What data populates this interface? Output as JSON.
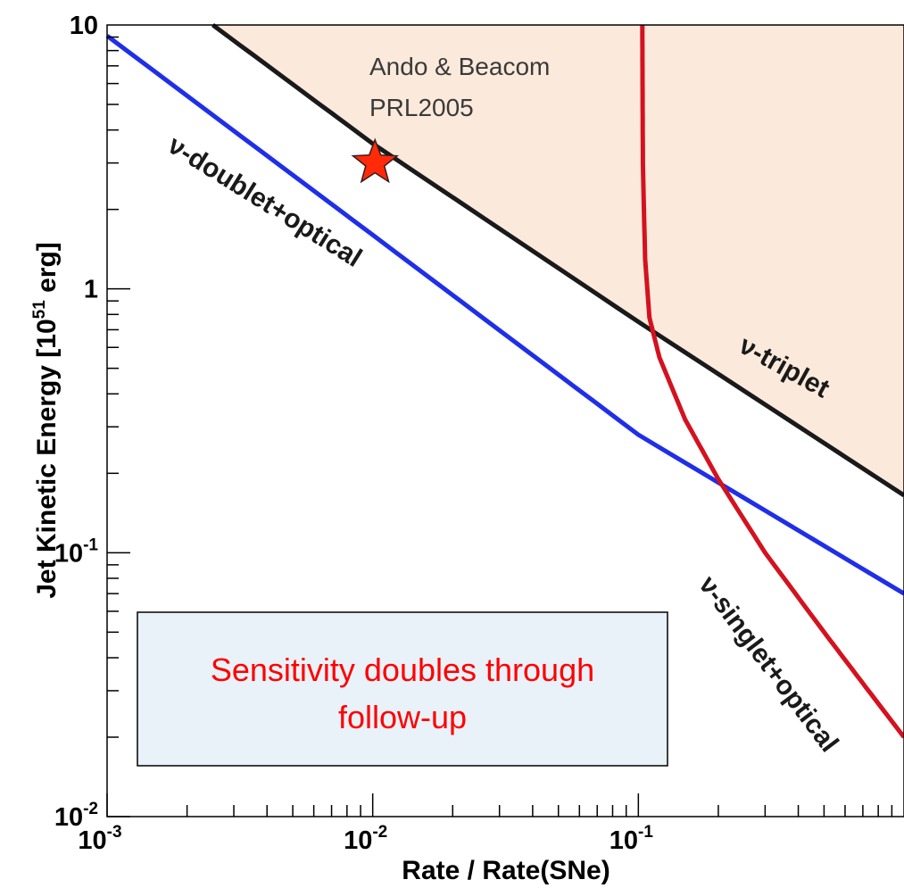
{
  "chart_data": {
    "type": "line",
    "title": "",
    "xlabel": "Rate / Rate(SNe)",
    "ylabel_parts": [
      "Jet Kinetic Energy [10",
      "51",
      " erg]"
    ],
    "x_scale": "log",
    "y_scale": "log",
    "xlim": [
      0.001,
      1.0
    ],
    "ylim": [
      0.01,
      10
    ],
    "x_ticks": [
      {
        "value": 0.001,
        "base": "10",
        "exp": "-3"
      },
      {
        "value": 0.01,
        "base": "10",
        "exp": "-2"
      },
      {
        "value": 0.1,
        "base": "10",
        "exp": "-1"
      }
    ],
    "y_ticks": [
      {
        "value": 0.01,
        "base": "10",
        "exp": "-2"
      },
      {
        "value": 0.1,
        "base": "10",
        "exp": "-1"
      },
      {
        "value": 1,
        "base": "1",
        "exp": ""
      },
      {
        "value": 10,
        "base": "10",
        "exp": ""
      }
    ],
    "excluded_region": {
      "color": "#fbeadb",
      "bound_series": "triplet"
    },
    "series": [
      {
        "key": "doublet",
        "name": "ν-doublet+optical",
        "color": "#1f2fe8",
        "x": [
          0.001,
          0.01,
          0.1,
          1.0
        ],
        "y": [
          9.1,
          1.6,
          0.28,
          0.07
        ]
      },
      {
        "key": "triplet",
        "name": "ν-triplet",
        "color": "#1a1a1a",
        "x": [
          0.0025,
          0.01,
          0.1,
          1.0
        ],
        "y": [
          10.0,
          3.55,
          0.75,
          0.165
        ]
      },
      {
        "key": "singlet",
        "name": "ν-singlet+optical",
        "color": "#d4121f",
        "x": [
          0.1035,
          0.104,
          0.106,
          0.11,
          0.12,
          0.15,
          0.2,
          0.3,
          0.5,
          0.7,
          1.0
        ],
        "y": [
          10.0,
          3.0,
          1.3,
          0.78,
          0.55,
          0.32,
          0.19,
          0.1,
          0.05,
          0.032,
          0.02
        ]
      }
    ],
    "annotations": [
      {
        "kind": "point",
        "marker": "star",
        "color": "#ff2a0a",
        "x": 0.0102,
        "y": 3.0,
        "lines": [
          "Ando & Beacom",
          "PRL2005"
        ]
      }
    ],
    "note_box": {
      "lines": [
        "Sensitivity doubles through",
        "follow-up"
      ],
      "background": "#e8f2f8",
      "text_color": "#ff0000"
    }
  }
}
